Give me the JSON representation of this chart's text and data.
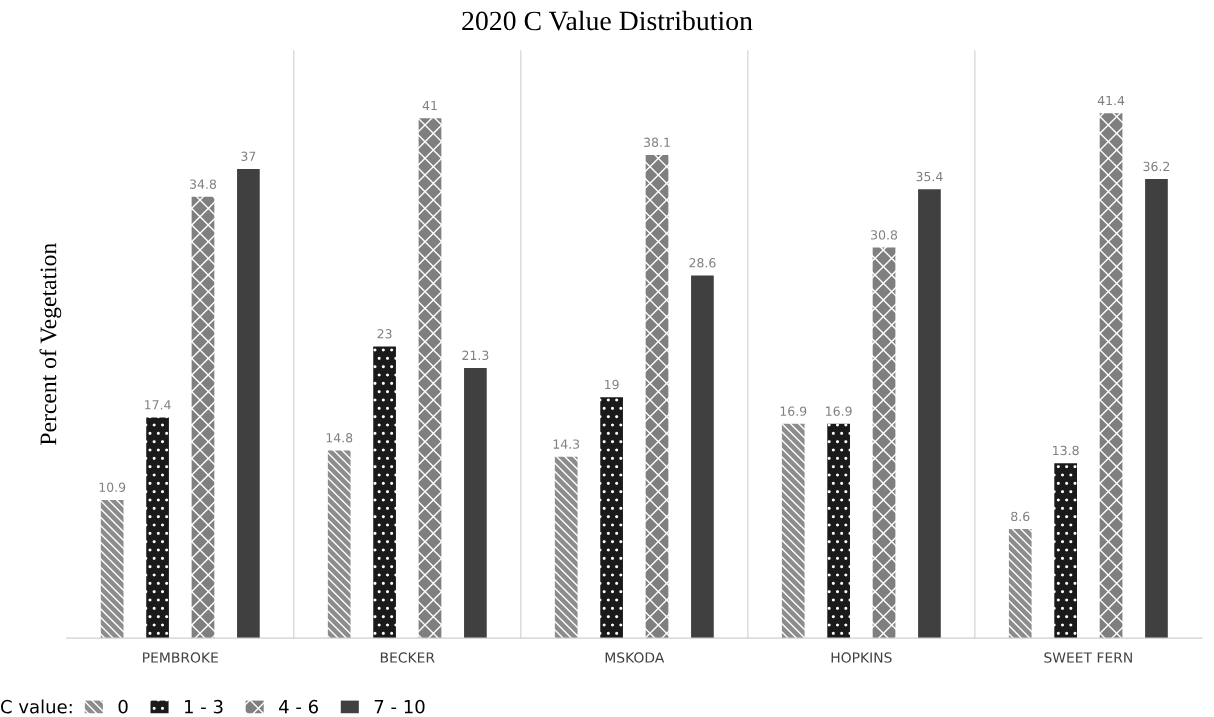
{
  "chart_data": {
    "type": "bar",
    "title": "2020 C Value Distribution",
    "ylabel": "Percent of Vegetation",
    "categories": [
      "PEMBROKE",
      "BECKER",
      "MSKODA",
      "HOPKINS",
      "SWEET FERN"
    ],
    "series": [
      {
        "name": "0",
        "color": "#8c8c8c",
        "values": [
          10.9,
          14.8,
          14.3,
          16.9,
          8.6
        ]
      },
      {
        "name": "1 - 3",
        "color": "#1a1a1a",
        "values": [
          17.4,
          23,
          19,
          16.9,
          13.8
        ]
      },
      {
        "name": "4 - 6",
        "color": "#7f7f7f",
        "values": [
          34.8,
          41,
          38.1,
          30.8,
          41.4
        ]
      },
      {
        "name": "7 - 10",
        "color": "#404040",
        "values": [
          37,
          21.3,
          28.6,
          35.4,
          36.2
        ]
      }
    ],
    "legend_title": "C value:",
    "legend": "bottom",
    "grid": "x",
    "data_labels": true
  }
}
